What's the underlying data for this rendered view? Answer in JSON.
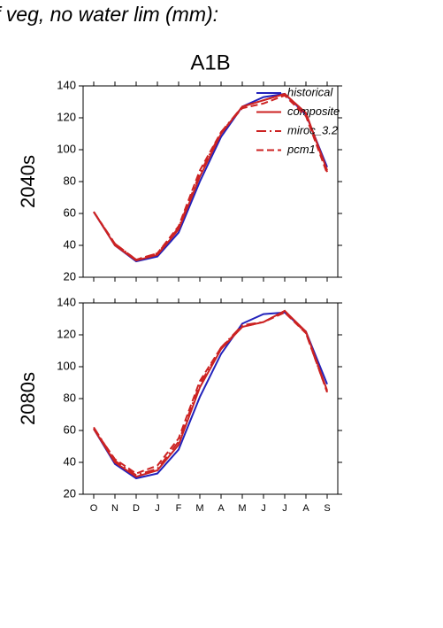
{
  "header": {
    "title": "f veg, no water lim (mm):"
  },
  "chart_data": [
    {
      "type": "line",
      "title": "A1B",
      "ylabel": "2040s",
      "categories": [
        null,
        null,
        null,
        null,
        null,
        null,
        null,
        null,
        null,
        null,
        null,
        null
      ],
      "ylim": [
        20,
        140
      ],
      "yticks": [
        20,
        40,
        60,
        80,
        100,
        120,
        140
      ],
      "legend": "upper right",
      "series": [
        {
          "name": "historical",
          "color": "#2222bb",
          "linestyle": "solid",
          "values": [
            61,
            40,
            30,
            33,
            48,
            80,
            108,
            127,
            133,
            135,
            122,
            89
          ]
        },
        {
          "name": "composite",
          "color": "#cc2222",
          "linestyle": "solid",
          "values": [
            61,
            40,
            30.5,
            34,
            50,
            83,
            110,
            127,
            131,
            135,
            123,
            87
          ]
        },
        {
          "name": "miroc_3.2",
          "color": "#cc2222",
          "linestyle": "dashdot",
          "values": [
            61,
            41,
            31,
            35,
            51,
            85,
            111,
            127,
            131,
            135,
            123,
            86
          ]
        },
        {
          "name": "pcm1",
          "color": "#cc2222",
          "linestyle": "dashed",
          "values": [
            61,
            41,
            31,
            35,
            52,
            87,
            111,
            126,
            129,
            134,
            121,
            85
          ]
        }
      ]
    },
    {
      "type": "line",
      "ylabel": "2080s",
      "categories": [
        "O",
        "N",
        "D",
        "J",
        "F",
        "M",
        "A",
        "M",
        "J",
        "J",
        "A",
        "S"
      ],
      "ylim": [
        20,
        140
      ],
      "yticks": [
        20,
        40,
        60,
        80,
        100,
        120,
        140
      ],
      "series": [
        {
          "color": "#2222bb",
          "linestyle": "solid",
          "values": [
            61,
            39,
            30,
            33,
            48,
            81,
            108,
            127,
            133,
            134,
            122,
            89
          ]
        },
        {
          "color": "#cc2222",
          "linestyle": "solid",
          "values": [
            61,
            40,
            31,
            35,
            51,
            87,
            111,
            125,
            128,
            135,
            122,
            85
          ]
        },
        {
          "color": "#cc2222",
          "linestyle": "dashdot",
          "values": [
            62,
            41,
            32,
            36,
            53,
            89,
            112,
            126,
            128,
            135,
            121,
            84
          ]
        },
        {
          "color": "#cc2222",
          "linestyle": "dashed",
          "values": [
            61,
            42,
            33,
            38,
            55,
            91,
            112,
            125,
            128,
            134,
            121,
            84
          ]
        }
      ]
    }
  ]
}
